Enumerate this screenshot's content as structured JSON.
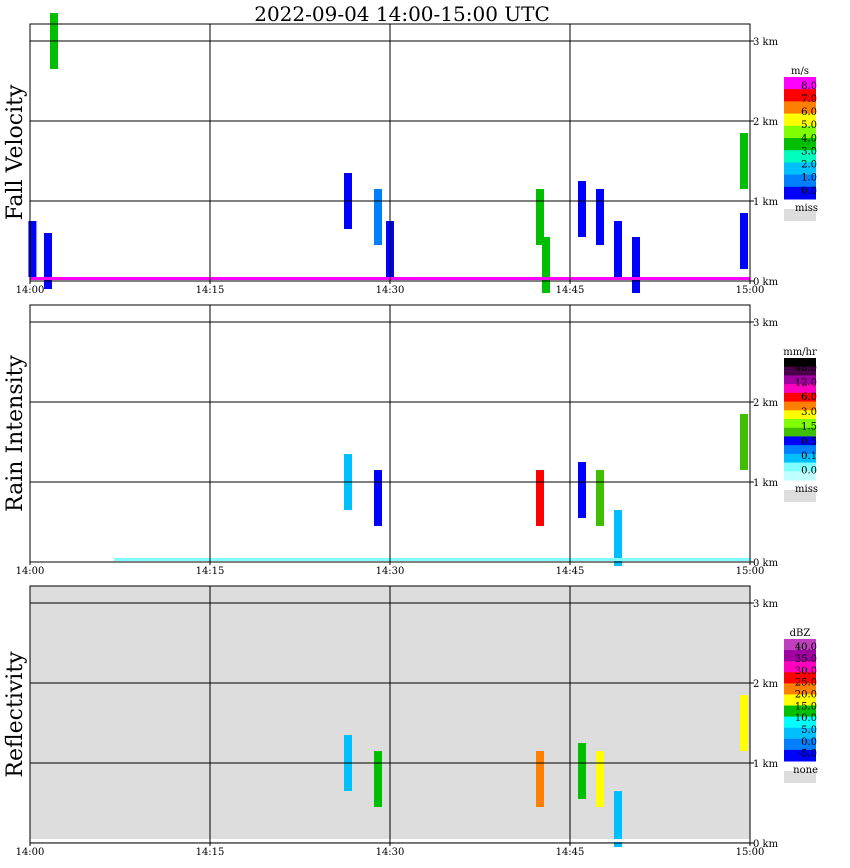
{
  "title": "2022-09-04   14:00-15:00 UTC",
  "x_ticks": [
    "14:00",
    "14:15",
    "14:30",
    "14:45",
    "15:00"
  ],
  "height_ticks": [
    "0 km",
    "1 km",
    "2 km",
    "3 km"
  ],
  "chart_data": [
    {
      "type": "heatmap",
      "ylabel": "Fall Velocity",
      "background": "#ffffff",
      "legend": {
        "unit": "m/s",
        "labels": [
          "8.0",
          "7.0",
          "6.0",
          "5.0",
          "4.0",
          "3.0",
          "2.0",
          "1.0",
          "0.0"
        ],
        "colors": [
          "#ff00ff",
          "#ff0000",
          "#ff7f00",
          "#ffff00",
          "#7fff00",
          "#00bf00",
          "#00ffbf",
          "#00bfff",
          "#007fff",
          "#0000ff"
        ],
        "missing_label": "miss",
        "missing_color": "#dddddd"
      },
      "features": [
        {
          "t": 2.0,
          "h": 3.0,
          "color": "#00bf00"
        },
        {
          "t": 0.2,
          "h": 0.4,
          "color": "#0000ff"
        },
        {
          "t": 1.5,
          "h": 0.25,
          "color": "#0000ff"
        },
        {
          "t": 26.5,
          "h": 1.0,
          "color": "#0000ff"
        },
        {
          "t": 29.0,
          "h": 0.8,
          "color": "#007fff"
        },
        {
          "t": 30.0,
          "h": 0.4,
          "color": "#0000ff"
        },
        {
          "t": 42.5,
          "h": 0.8,
          "color": "#00bf00"
        },
        {
          "t": 43.0,
          "h": 0.2,
          "color": "#00bf00"
        },
        {
          "t": 46.0,
          "h": 0.9,
          "color": "#0000ff"
        },
        {
          "t": 47.5,
          "h": 0.8,
          "color": "#0000ff"
        },
        {
          "t": 49.0,
          "h": 0.4,
          "color": "#0000ff"
        },
        {
          "t": 50.5,
          "h": 0.2,
          "color": "#0000ff"
        },
        {
          "t": 59.5,
          "h": 1.5,
          "color": "#00bf00"
        },
        {
          "t": 59.5,
          "h": 0.5,
          "color": "#0000ff"
        }
      ],
      "surface": [
        [
          0,
          60,
          "#ff00ff"
        ]
      ]
    },
    {
      "type": "heatmap",
      "ylabel": "Rain Intensity",
      "background": "#ffffff",
      "legend": {
        "unit": "mm/hr",
        "labels": [
          "48.0",
          "12.0",
          "6.0",
          "3.0",
          "1.5",
          "0.5",
          "0.1",
          "0.0"
        ],
        "colors": [
          "#000000",
          "#4a004a",
          "#9f009f",
          "#ff00bf",
          "#ff0000",
          "#ff7f00",
          "#ffff00",
          "#7fff00",
          "#3fbf00",
          "#0000ff",
          "#007fff",
          "#00bfff",
          "#7fffff",
          "#bfffff"
        ],
        "missing_label": "miss",
        "missing_color": "#dddddd"
      },
      "features": [
        {
          "t": 26.5,
          "h": 1.0,
          "color": "#00bfff"
        },
        {
          "t": 29.0,
          "h": 0.8,
          "color": "#0000ff"
        },
        {
          "t": 42.5,
          "h": 0.8,
          "color": "#ff0000"
        },
        {
          "t": 46.0,
          "h": 0.9,
          "color": "#0000ff"
        },
        {
          "t": 47.5,
          "h": 0.8,
          "color": "#3fbf00"
        },
        {
          "t": 49.0,
          "h": 0.3,
          "color": "#00bfff"
        },
        {
          "t": 59.5,
          "h": 1.5,
          "color": "#3fbf00"
        }
      ],
      "surface": [
        [
          7,
          60,
          "#7fffff"
        ]
      ]
    },
    {
      "type": "heatmap",
      "ylabel": "Reflectivity",
      "background": "#dddddd",
      "legend": {
        "unit": "dBZ",
        "labels": [
          "40.0",
          "35.0",
          "30.0",
          "25.0",
          "20.0",
          "15.0",
          "10.0",
          "5.0",
          "0.0",
          "-5.0"
        ],
        "colors": [
          "#bf3fbf",
          "#9f009f",
          "#ff00bf",
          "#ff0000",
          "#ff7f00",
          "#ffff00",
          "#00bf00",
          "#00ffff",
          "#00bfff",
          "#007fff",
          "#0000ff"
        ],
        "missing_label": "none",
        "missing_color": "#dddddd"
      },
      "features": [
        {
          "t": 26.5,
          "h": 1.0,
          "color": "#00bfff"
        },
        {
          "t": 29.0,
          "h": 0.8,
          "color": "#00bf00"
        },
        {
          "t": 42.5,
          "h": 0.8,
          "color": "#ff7f00"
        },
        {
          "t": 46.0,
          "h": 0.9,
          "color": "#00bf00"
        },
        {
          "t": 47.5,
          "h": 0.8,
          "color": "#ffff00"
        },
        {
          "t": 49.0,
          "h": 0.3,
          "color": "#00bfff"
        },
        {
          "t": 59.5,
          "h": 1.5,
          "color": "#ffff00"
        }
      ],
      "surface": [
        [
          0,
          60,
          "#ffffff"
        ]
      ]
    }
  ]
}
